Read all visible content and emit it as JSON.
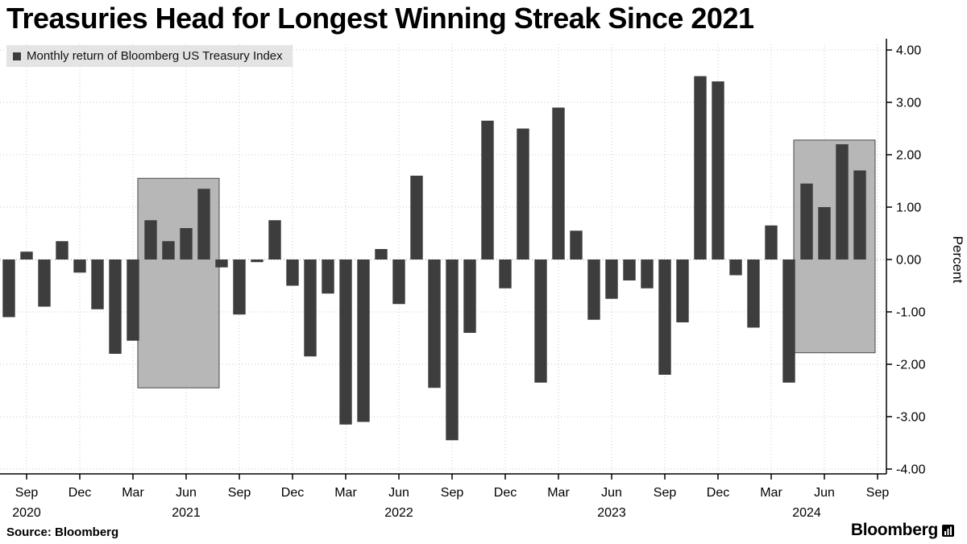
{
  "title": "Treasuries Head for Longest Winning Streak Since 2021",
  "legend": {
    "label": "Monthly return of Bloomberg US Treasury Index"
  },
  "footer": {
    "source": "Source: Bloomberg",
    "brand": "Bloomberg"
  },
  "colors": {
    "bar": "#3d3d3d",
    "highlight_fill": "#aaaaaa",
    "highlight_stroke": "#4a4a4a",
    "grid": "#c9c9c9",
    "zero_grid": "#9a9a9a",
    "axis": "#000000",
    "legend_bg": "#e4e4e4",
    "text": "#000000"
  },
  "chart_data": {
    "type": "bar",
    "title": "Treasuries Head for Longest Winning Streak Since 2021",
    "series_name": "Monthly return of Bloomberg US Treasury Index",
    "xlabel": "",
    "ylabel": "Percent",
    "ylim": [
      -4.0,
      4.0
    ],
    "ytick_step": 1.0,
    "grid": "dotted",
    "legend_position": "top-left",
    "months": [
      "Aug 2020",
      "Sep 2020",
      "Oct 2020",
      "Nov 2020",
      "Dec 2020",
      "Jan 2021",
      "Feb 2021",
      "Mar 2021",
      "Apr 2021",
      "May 2021",
      "Jun 2021",
      "Jul 2021",
      "Aug 2021",
      "Sep 2021",
      "Oct 2021",
      "Nov 2021",
      "Dec 2021",
      "Jan 2022",
      "Feb 2022",
      "Mar 2022",
      "Apr 2022",
      "May 2022",
      "Jun 2022",
      "Jul 2022",
      "Aug 2022",
      "Sep 2022",
      "Oct 2022",
      "Nov 2022",
      "Dec 2022",
      "Jan 2023",
      "Feb 2023",
      "Mar 2023",
      "Apr 2023",
      "May 2023",
      "Jun 2023",
      "Jul 2023",
      "Aug 2023",
      "Sep 2023",
      "Oct 2023",
      "Nov 2023",
      "Dec 2023",
      "Jan 2024",
      "Feb 2024",
      "Mar 2024",
      "Apr 2024",
      "May 2024",
      "Jun 2024",
      "Jul 2024",
      "Aug 2024"
    ],
    "values": [
      -1.1,
      0.15,
      -0.9,
      0.35,
      -0.25,
      -0.95,
      -1.8,
      -1.55,
      0.75,
      0.35,
      0.6,
      1.35,
      -0.15,
      -1.05,
      -0.05,
      0.75,
      -0.5,
      -1.85,
      -0.65,
      -3.15,
      -3.1,
      0.2,
      -0.85,
      1.6,
      -2.45,
      -3.45,
      -1.4,
      2.65,
      -0.55,
      2.5,
      -2.35,
      2.9,
      0.55,
      -1.15,
      -0.75,
      -0.4,
      -0.55,
      -2.2,
      -1.2,
      3.5,
      3.4,
      -0.3,
      -1.3,
      0.65,
      -2.35,
      1.45,
      1.0,
      2.2,
      1.7
    ],
    "yticks": [
      {
        "v": 4,
        "label": "4.00"
      },
      {
        "v": 3,
        "label": "3.00"
      },
      {
        "v": 2,
        "label": "2.00"
      },
      {
        "v": 1,
        "label": "1.00"
      },
      {
        "v": 0,
        "label": "0.00"
      },
      {
        "v": -1,
        "label": "-1.00"
      },
      {
        "v": -2,
        "label": "-2.00"
      },
      {
        "v": -3,
        "label": "-3.00"
      },
      {
        "v": -4,
        "label": "-4.00"
      }
    ],
    "xticks": [
      {
        "i": 1,
        "label": "Sep"
      },
      {
        "i": 4,
        "label": "Dec"
      },
      {
        "i": 7,
        "label": "Mar"
      },
      {
        "i": 10,
        "label": "Jun"
      },
      {
        "i": 13,
        "label": "Sep"
      },
      {
        "i": 16,
        "label": "Dec"
      },
      {
        "i": 19,
        "label": "Mar"
      },
      {
        "i": 22,
        "label": "Jun"
      },
      {
        "i": 25,
        "label": "Sep"
      },
      {
        "i": 28,
        "label": "Dec"
      },
      {
        "i": 31,
        "label": "Mar"
      },
      {
        "i": 34,
        "label": "Jun"
      },
      {
        "i": 37,
        "label": "Sep"
      },
      {
        "i": 40,
        "label": "Dec"
      },
      {
        "i": 43,
        "label": "Mar"
      },
      {
        "i": 46,
        "label": "Jun"
      },
      {
        "i": 49,
        "label": "Sep"
      }
    ],
    "year_labels": [
      {
        "i": 1,
        "label": "2020"
      },
      {
        "i": 10,
        "label": "2021"
      },
      {
        "i": 22,
        "label": "2022"
      },
      {
        "i": 34,
        "label": "2023"
      },
      {
        "i": 45,
        "label": "2024"
      }
    ],
    "highlight_boxes": [
      {
        "from_index": 8,
        "to_index": 11,
        "top": 1.55,
        "bottom": -2.45
      },
      {
        "from_index": 45,
        "to_index": 48,
        "top": 2.28,
        "bottom": -1.78
      }
    ]
  }
}
